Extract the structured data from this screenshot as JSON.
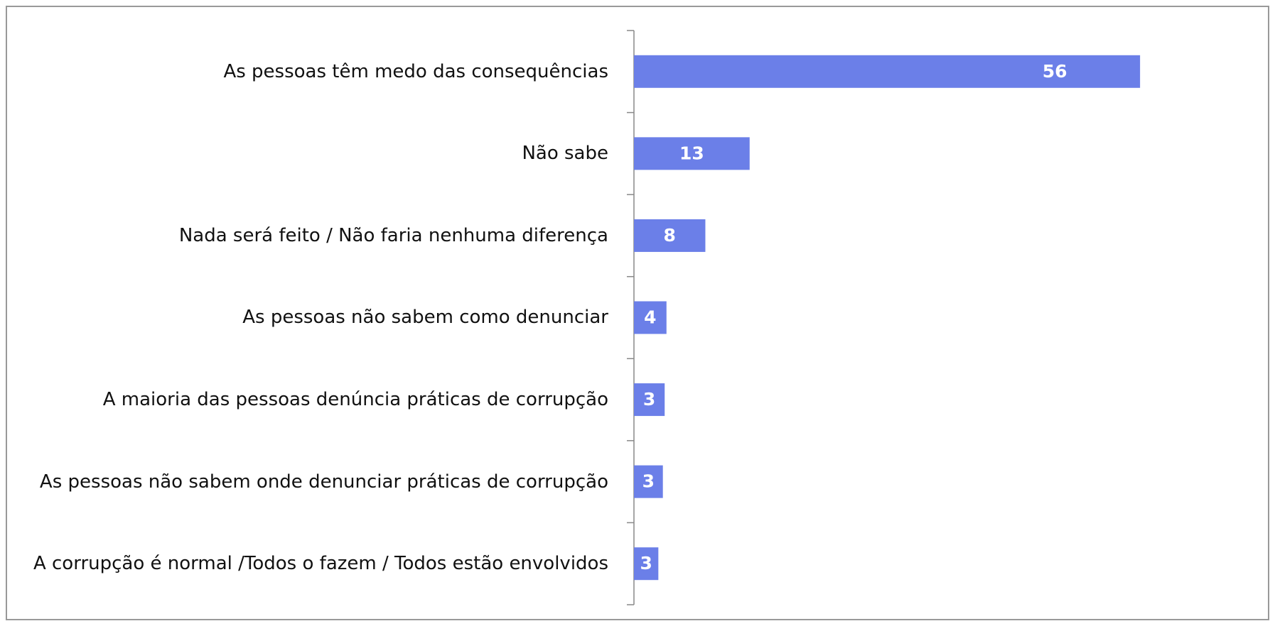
{
  "chart_data": {
    "type": "bar",
    "orientation": "horizontal",
    "categories": [
      "As pessoas têm medo das consequências",
      "Não sabe",
      "Nada será feito / Não faria nenhuma diferença",
      "As pessoas não sabem como denunciar",
      "A maioria das pessoas denúncia práticas de corrupção",
      "As pessoas não sabem onde denunciar práticas de corrupção",
      "A corrupção é normal /Todos o fazem / Todos estão envolvidos"
    ],
    "values": [
      56,
      12.8,
      7.9,
      3.6,
      3.4,
      3.2,
      2.7
    ],
    "value_labels": [
      "56",
      "13",
      "8",
      "4",
      "3",
      "3",
      "3"
    ],
    "color": "#6b7fe8",
    "xlim": [
      0,
      60
    ]
  }
}
